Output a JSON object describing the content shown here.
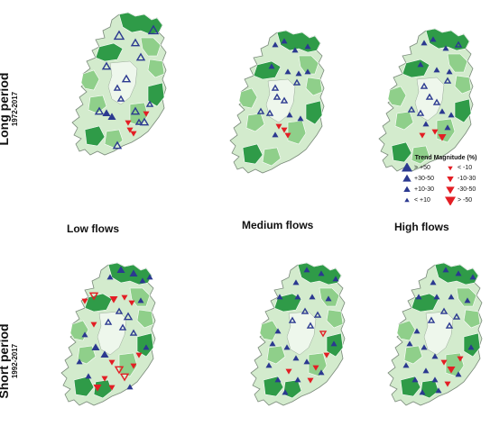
{
  "rows": [
    {
      "label": "Long period",
      "years": "1972-2017"
    },
    {
      "label": "Short period",
      "years": "1992-2017"
    }
  ],
  "columns": [
    "Low flows",
    "Medium flows",
    "High flows"
  ],
  "legend": {
    "title": "Trend Magnitude (%)",
    "items": [
      {
        "label": "> +50",
        "symbol": "up-triangle",
        "size": "xl",
        "color": "#2b3990"
      },
      {
        "label": "< -10",
        "symbol": "down-triangle",
        "size": "s",
        "color": "#e31e24"
      },
      {
        "label": "+30-50",
        "symbol": "up-triangle",
        "size": "l",
        "color": "#2b3990"
      },
      {
        "label": "-10-30",
        "symbol": "down-triangle",
        "size": "m",
        "color": "#e31e24"
      },
      {
        "label": "+10-30",
        "symbol": "up-triangle",
        "size": "m",
        "color": "#2b3990"
      },
      {
        "label": "-30-50",
        "symbol": "down-triangle",
        "size": "l",
        "color": "#e31e24"
      },
      {
        "label": "< +10",
        "symbol": "up-triangle",
        "size": "s",
        "color": "#2b3990"
      },
      {
        "label": "> -50",
        "symbol": "down-triangle",
        "size": "xl",
        "color": "#e31e24"
      }
    ]
  },
  "colors": {
    "land_light": "#d3ebcd",
    "land_medium": "#8fcf8a",
    "land_dark": "#2f9b48",
    "increase": "#2b3990",
    "decrease": "#e31e24",
    "map_background": "#ffffff"
  }
}
